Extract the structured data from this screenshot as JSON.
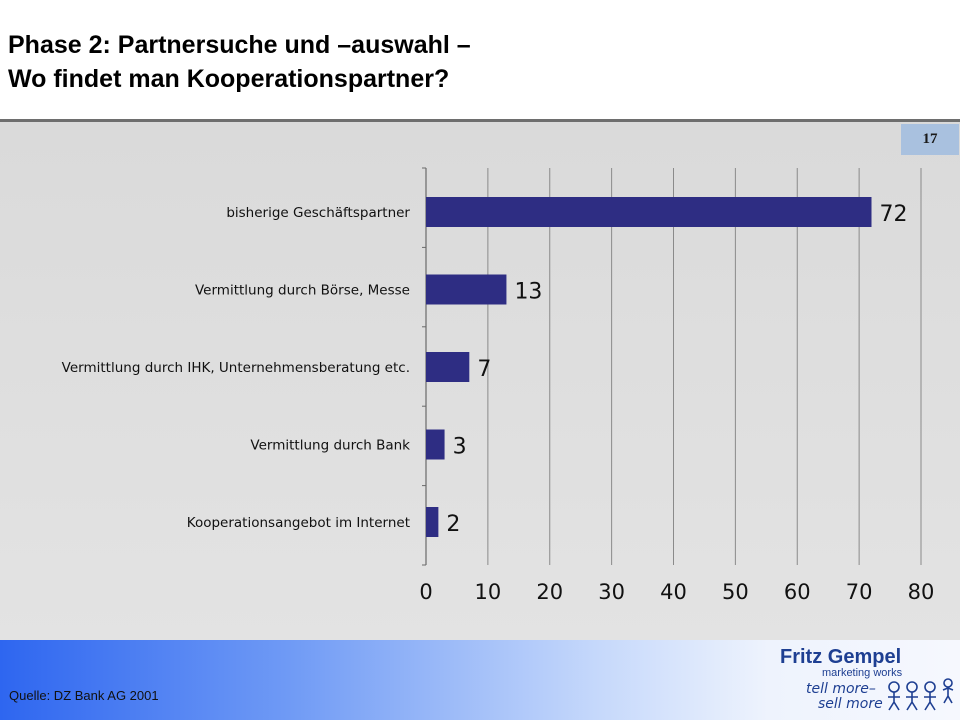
{
  "slide": {
    "title_line1": "Phase 2: Partnersuche und –auswahl –",
    "title_line2": "Wo findet man Kooperationspartner?",
    "page_number": "17",
    "source": "Quelle: DZ Bank AG 2001"
  },
  "logo": {
    "line1": "Fritz Gempel",
    "line2": "marketing works",
    "line3": "tell more–",
    "line4": "sell more"
  },
  "colors": {
    "bar": "#2e2d83",
    "accent": "#2e66f0"
  },
  "chart_data": {
    "type": "bar",
    "orientation": "horizontal",
    "categories": [
      "bisherige Geschäftspartner",
      "Vermittlung durch Börse, Messe",
      "Vermittlung durch IHK, Unternehmensberatung etc.",
      "Vermittlung durch Bank",
      "Kooperationsangebot im Internet"
    ],
    "values": [
      72,
      13,
      7,
      3,
      2
    ],
    "xlim": [
      0,
      80
    ],
    "xticks": [
      0,
      10,
      20,
      30,
      40,
      50,
      60,
      70,
      80
    ],
    "grid": true,
    "data_labels": true
  }
}
